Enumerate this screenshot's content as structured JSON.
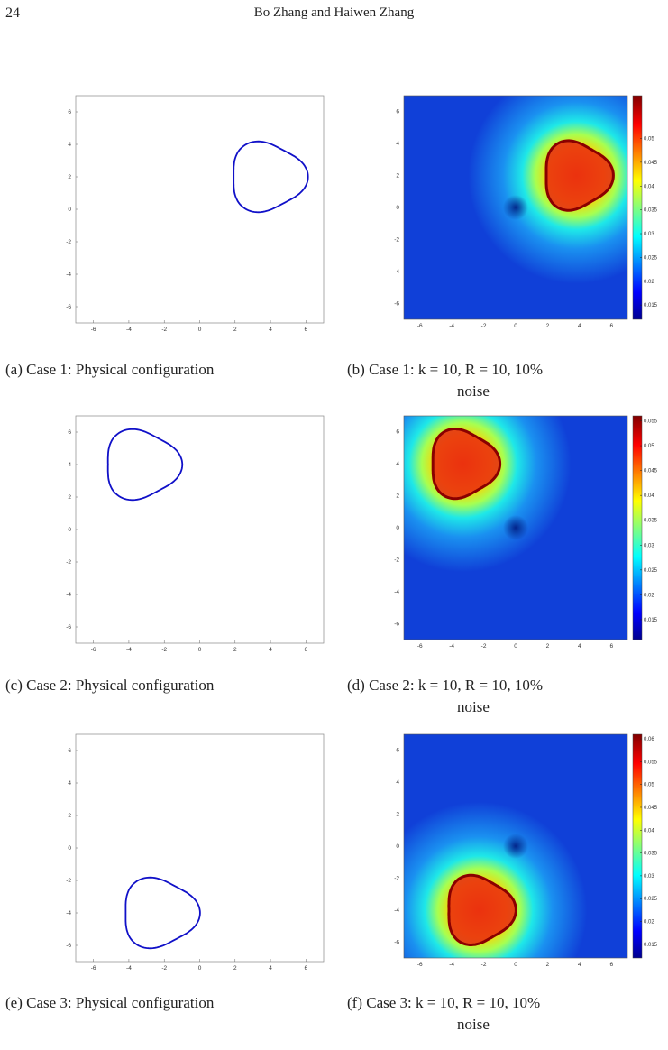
{
  "header": {
    "page_number": "24",
    "authors": "Bo Zhang and Haiwen Zhang"
  },
  "figures": [
    {
      "id": "case1",
      "config_caption": "(a) Case 1:  Physical configuration",
      "recon_caption_line1": "(b) Case 1:  k = 10, R = 10, 10%",
      "recon_caption_line2": "noise",
      "obstacle_center": [
        3.8,
        2.0
      ],
      "colorbar_ticks": [
        "0.05",
        "0.045",
        "0.04",
        "0.035",
        "0.03",
        "0.025",
        "0.02",
        "0.015"
      ],
      "colorbar_range": [
        0.012,
        0.059
      ]
    },
    {
      "id": "case2",
      "config_caption": "(c) Case 2:  Physical configuration",
      "recon_caption_line1": "(d) Case 2:  k = 10, R = 10, 10%",
      "recon_caption_line2": "noise",
      "obstacle_center": [
        -3.3,
        4.0
      ],
      "colorbar_ticks": [
        "0.055",
        "0.05",
        "0.045",
        "0.04",
        "0.035",
        "0.03",
        "0.025",
        "0.02",
        "0.015"
      ],
      "colorbar_range": [
        0.011,
        0.056
      ]
    },
    {
      "id": "case3",
      "config_caption": "(e) Case 3:  Physical configuration",
      "recon_caption_line1": "(f) Case 3:  k = 10, R = 10, 10%",
      "recon_caption_line2": "noise",
      "obstacle_center": [
        -2.3,
        -4.0
      ],
      "colorbar_ticks": [
        "0.06",
        "0.055",
        "0.05",
        "0.045",
        "0.04",
        "0.035",
        "0.03",
        "0.025",
        "0.02",
        "0.015"
      ],
      "colorbar_range": [
        0.012,
        0.061
      ]
    }
  ],
  "axis": {
    "x_ticks": [
      "-6",
      "-4",
      "-2",
      "0",
      "2",
      "4",
      "6"
    ],
    "y_ticks": [
      "6",
      "4",
      "2",
      "0",
      "-2",
      "-4",
      "-6"
    ],
    "range": [
      -7,
      7
    ]
  },
  "colors": {
    "curve": "#1010c8",
    "frame": "#888888"
  }
}
